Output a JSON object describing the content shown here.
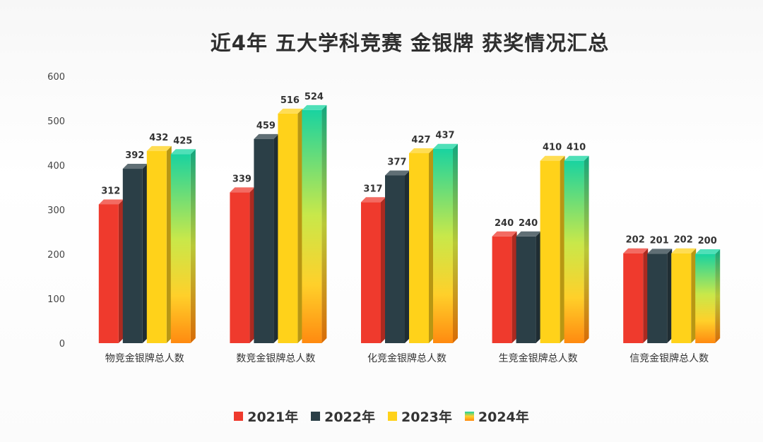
{
  "title": "近4年 五大学科竞赛 金银牌 获奖情况汇总",
  "chart_data": {
    "type": "bar",
    "title": "近4年 五大学科竞赛 金银牌 获奖情况汇总",
    "categories": [
      "物竞金银牌总人数",
      "数竞金银牌总人数",
      "化竞金银牌总人数",
      "生竞金银牌总人数",
      "信竞金银牌总人数"
    ],
    "series": [
      {
        "name": "2021年",
        "color": "#ef3a2d",
        "values": [
          312,
          339,
          317,
          240,
          202
        ]
      },
      {
        "name": "2022年",
        "color": "#2b3f47",
        "values": [
          392,
          459,
          377,
          240,
          201
        ]
      },
      {
        "name": "2023年",
        "color": "#ffd21a",
        "values": [
          432,
          516,
          427,
          410,
          202
        ]
      },
      {
        "name": "2024年",
        "color": "gradient-green-orange",
        "values": [
          425,
          524,
          437,
          410,
          200
        ]
      }
    ],
    "ylim": [
      0,
      600
    ],
    "yticks": [
      0,
      100,
      200,
      300,
      400,
      500,
      600
    ],
    "data_labels": true,
    "legend_position": "bottom",
    "grid": false
  }
}
